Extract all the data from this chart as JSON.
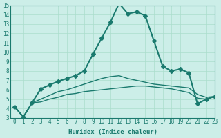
{
  "xlabel": "Humidex (Indice chaleur)",
  "ylabel": "",
  "bg_color": "#cceee8",
  "line_color": "#1a7a6e",
  "grid_color": "#aaddcc",
  "xlim": [
    0,
    23
  ],
  "ylim": [
    3,
    15
  ],
  "yticks": [
    3,
    4,
    5,
    6,
    7,
    8,
    9,
    10,
    11,
    12,
    13,
    14,
    15
  ],
  "xticks": [
    0,
    1,
    2,
    3,
    4,
    5,
    6,
    7,
    8,
    9,
    10,
    11,
    12,
    13,
    14,
    15,
    16,
    17,
    18,
    19,
    20,
    21,
    22,
    23
  ],
  "series": [
    {
      "x": [
        0,
        1,
        2,
        3,
        4,
        5,
        6,
        7,
        8,
        9,
        10,
        11,
        12,
        13,
        14,
        15,
        16,
        17,
        18,
        19,
        20,
        21,
        22,
        23
      ],
      "y": [
        4.2,
        3.1,
        4.6,
        6.1,
        6.5,
        6.9,
        7.2,
        7.5,
        8.0,
        9.8,
        11.5,
        13.2,
        15.2,
        14.1,
        14.3,
        13.9,
        11.2,
        8.5,
        8.0,
        8.2,
        7.8,
        4.5,
        5.0,
        5.3
      ],
      "marker": "D",
      "markersize": 3,
      "linewidth": 1.5
    },
    {
      "x": [
        0,
        1,
        2,
        3,
        4,
        5,
        6,
        7,
        8,
        9,
        10,
        11,
        12,
        13,
        14,
        15,
        16,
        17,
        18,
        19,
        20,
        21,
        22,
        23
      ],
      "y": [
        4.2,
        3.1,
        4.6,
        4.7,
        5.0,
        5.2,
        5.5,
        5.6,
        5.8,
        5.9,
        6.0,
        6.1,
        6.2,
        6.3,
        6.4,
        6.4,
        6.3,
        6.2,
        6.1,
        5.9,
        5.7,
        5.1,
        5.0,
        5.3
      ],
      "marker": null,
      "markersize": 0,
      "linewidth": 1.0
    },
    {
      "x": [
        0,
        1,
        2,
        3,
        4,
        5,
        6,
        7,
        8,
        9,
        10,
        11,
        12,
        13,
        14,
        15,
        16,
        17,
        18,
        19,
        20,
        21,
        22,
        23
      ],
      "y": [
        4.2,
        3.1,
        4.6,
        5.0,
        5.4,
        5.8,
        6.0,
        6.3,
        6.6,
        6.9,
        7.2,
        7.4,
        7.5,
        7.2,
        7.0,
        6.8,
        6.6,
        6.5,
        6.4,
        6.3,
        6.2,
        5.5,
        5.2,
        5.3
      ],
      "marker": null,
      "markersize": 0,
      "linewidth": 1.0
    }
  ]
}
